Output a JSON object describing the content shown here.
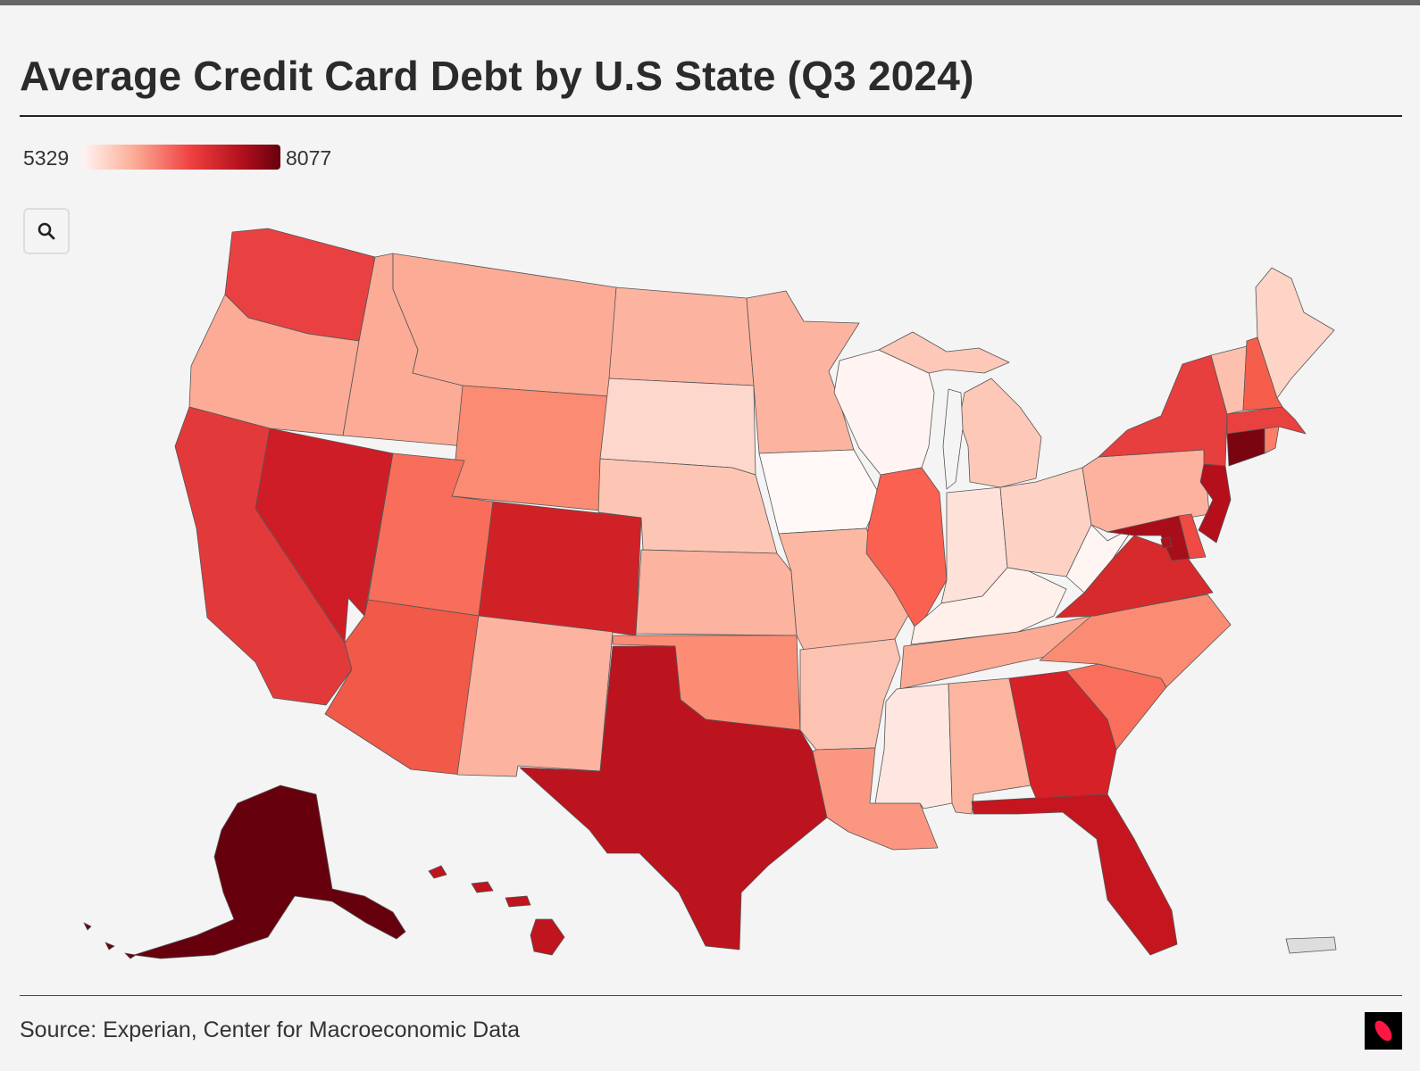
{
  "title": "Average Credit Card Debt by U.S State (Q3 2024)",
  "legend": {
    "min": "5329",
    "max": "8077",
    "color_low": "#fff4f2",
    "color_mid": "#ef4040",
    "color_high": "#67000d"
  },
  "zoom_button": {
    "icon": "search-icon"
  },
  "source": "Source: Experian, Center for Macroeconomic Data",
  "logo": {
    "icon": "brand-logo-icon"
  },
  "map": {
    "type": "choropleth",
    "region": "United States",
    "states": {
      "AK": "#67000d",
      "WA": "#e94142",
      "OR": "#fcab96",
      "CA": "#e23a3b",
      "NV": "#cf1d27",
      "ID": "#fcab96",
      "MT": "#fcab96",
      "WY": "#fb8b73",
      "UT": "#f86e5a",
      "AZ": "#f15948",
      "CO": "#d02127",
      "NM": "#fcb3a0",
      "TX": "#bb141f",
      "HI": "#c0141f",
      "ND": "#fcb3a0",
      "SD": "#fdd7cc",
      "NE": "#fdc6b4",
      "KS": "#fcb3a0",
      "OK": "#fb8d75",
      "MN": "#fcb3a0",
      "IA": "#fff8f6",
      "MO": "#fcb8a3",
      "AR": "#fcc3b2",
      "LA": "#fb9780",
      "WI": "#fff4f2",
      "IL": "#fb6150",
      "MI": "#fdc8b8",
      "IN": "#fee2da",
      "OH": "#fdd2c4",
      "KY": "#fff0eb",
      "TN": "#fcaa94",
      "MS": "#fee7e0",
      "AL": "#fcb59f",
      "GA": "#d52127",
      "FL": "#c5161f",
      "SC": "#f96f5b",
      "NC": "#fb8c74",
      "VA": "#d72a2c",
      "WV": "#fff6f3",
      "PA": "#fcb29e",
      "NY": "#e73e3e",
      "VT": "#fdc0ae",
      "NH": "#f55e4b",
      "ME": "#fdd4c6",
      "MA": "#e8413f",
      "RI": "#fc7e69",
      "CT": "#7a0410",
      "NJ": "#b50f1c",
      "DE": "#ef4a44",
      "MD": "#a80e1a",
      "DC": "#b0101c",
      "PR": "#dddddd"
    }
  }
}
